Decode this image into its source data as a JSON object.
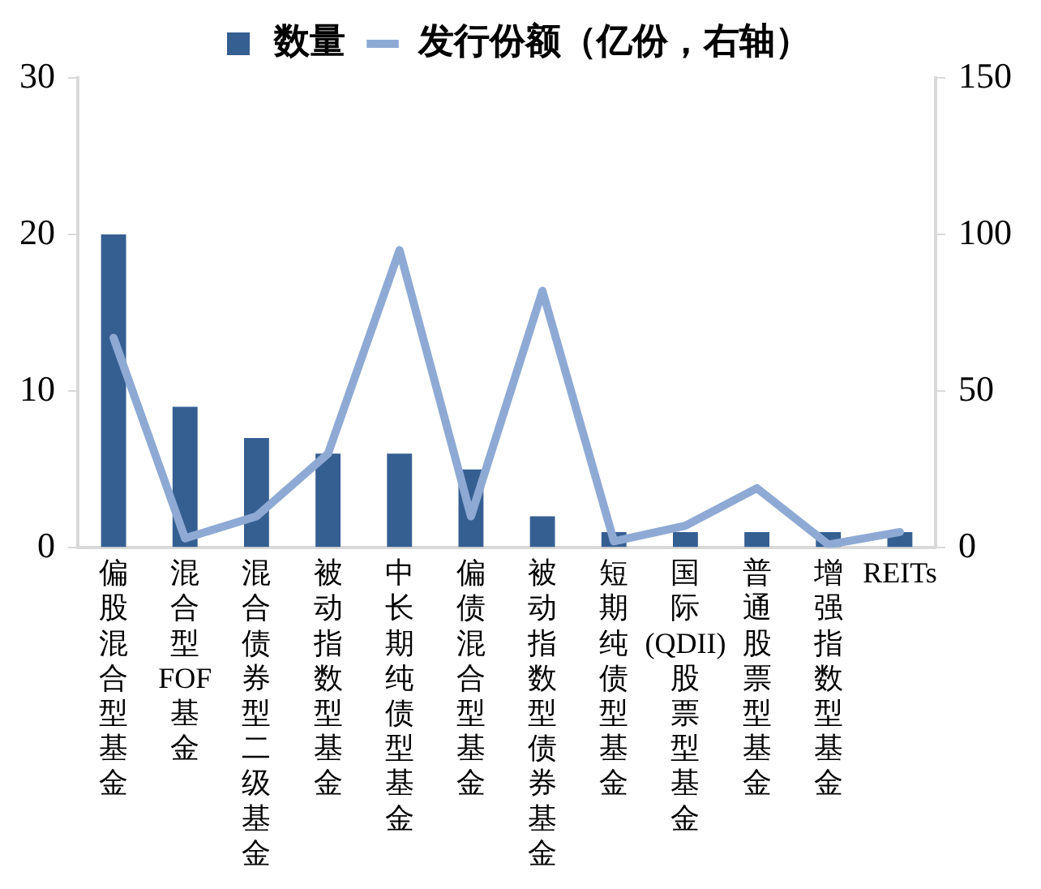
{
  "chart_data": {
    "type": "bar",
    "categories": [
      "偏股混合型基金",
      "混合型FOF基金",
      "混合债券型二级基金",
      "被动指数型基金",
      "中长期纯债型基金",
      "偏债混合型基金",
      "被动指数型债券基金",
      "短期纯债型基金",
      "国际(QDII)股票型基金",
      "普通股票型基金",
      "增强指数型基金",
      "REITs"
    ],
    "series": [
      {
        "name": "数量",
        "color": "#365f91",
        "values": [
          20,
          9,
          7,
          6,
          6,
          5,
          2,
          1,
          1,
          1,
          1,
          1
        ]
      },
      {
        "name": "发行份额（亿份，右轴）",
        "type": "line",
        "axis": "y2",
        "color": "#8eaad4",
        "values": [
          67,
          3,
          10,
          30,
          95,
          10,
          82,
          2,
          7,
          19,
          1,
          5
        ]
      }
    ],
    "ylim": [
      0,
      30
    ],
    "yticks": [
      0,
      10,
      20,
      30
    ],
    "y2lim": [
      0,
      150
    ],
    "y2ticks": [
      0,
      50,
      100,
      150
    ],
    "grid": false,
    "legend": "top",
    "marker": "none",
    "line_style": "solid"
  }
}
